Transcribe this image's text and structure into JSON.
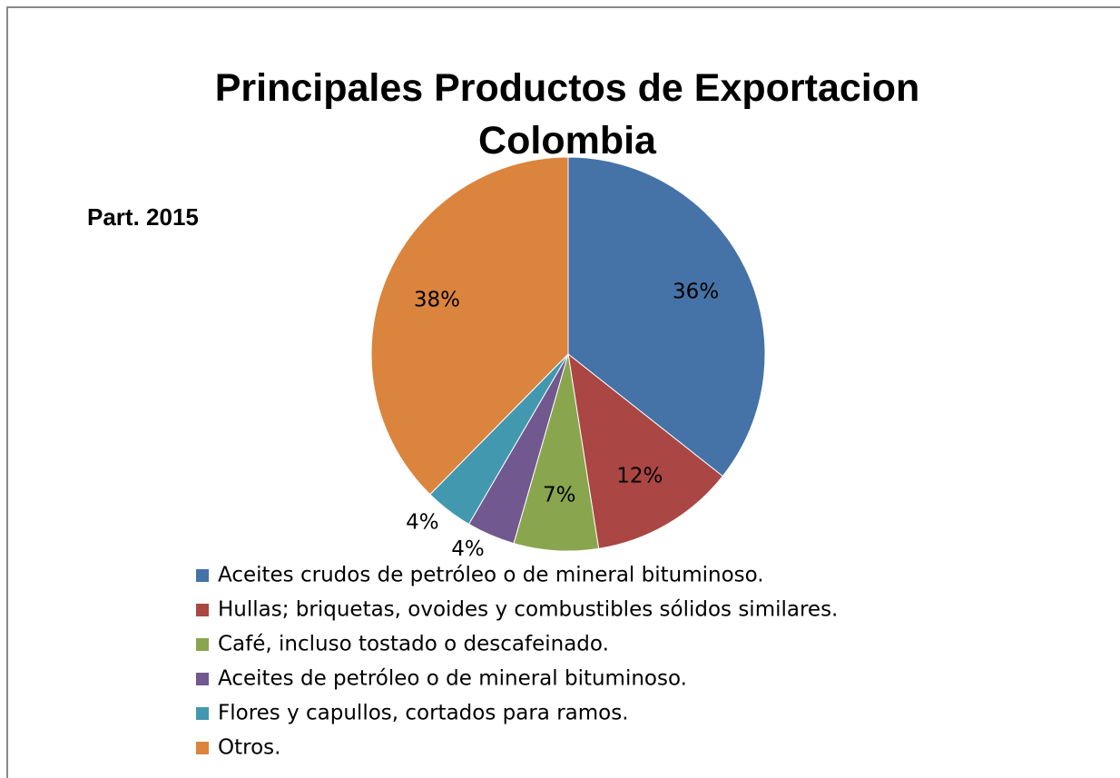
{
  "chart_data": {
    "type": "pie",
    "title": "Principales Productos de Exportacion Colombia",
    "subtitle": "Part. 2015",
    "categories": [
      "Aceites crudos de petróleo o de mineral bituminoso.",
      "Hullas; briquetas, ovoides y combustibles sólidos similares.",
      "Café, incluso tostado o descafeinado.",
      "Aceites de petróleo o de mineral bituminoso.",
      "Flores y capullos, cortados para ramos.",
      "Otros."
    ],
    "values": [
      36,
      12,
      7,
      4,
      4,
      38
    ],
    "value_labels": [
      "36%",
      "12%",
      "7%",
      "4%",
      "4%",
      "38%"
    ],
    "colors": [
      "#4572a7",
      "#aa4643",
      "#89a54e",
      "#71588f",
      "#4198af",
      "#db843d"
    ],
    "legend": "bottom"
  }
}
